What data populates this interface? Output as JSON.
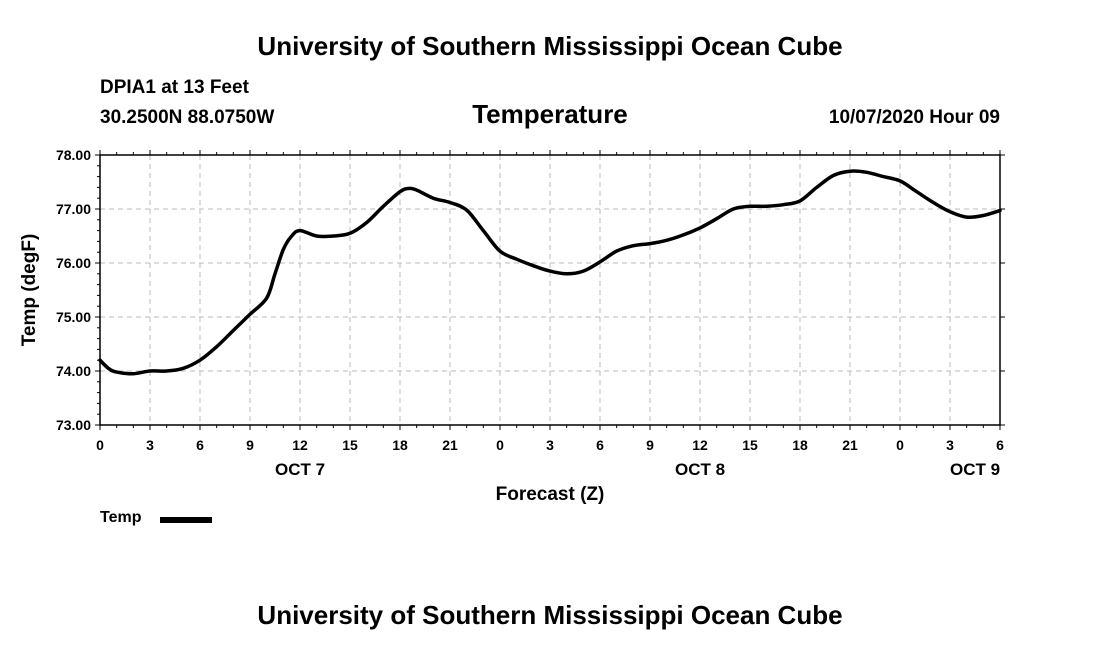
{
  "header": {
    "title": "University of Southern Mississippi Ocean Cube",
    "station": "DPIA1 at 13 Feet",
    "coordinates": "30.2500N 88.0750W",
    "variable": "Temperature",
    "datetime": "10/07/2020 Hour 09"
  },
  "footer": {
    "title": "University of Southern Mississippi Ocean Cube"
  },
  "legend": {
    "label": "Temp",
    "color": "#000000"
  },
  "chart_data": {
    "type": "line",
    "title": "Temperature",
    "xlabel": "Forecast (Z)",
    "ylabel": "Temp (degF)",
    "xlim": [
      0,
      54
    ],
    "ylim": [
      73.0,
      78.0
    ],
    "grid": true,
    "y_ticks": [
      "73.00",
      "74.00",
      "75.00",
      "76.00",
      "77.00",
      "78.00"
    ],
    "y_tick_values": [
      73,
      74,
      75,
      76,
      77,
      78
    ],
    "x_tick_labels": [
      "0",
      "3",
      "6",
      "9",
      "12",
      "15",
      "18",
      "21",
      "0",
      "3",
      "6",
      "9",
      "12",
      "15",
      "18",
      "21",
      "0",
      "3",
      "6"
    ],
    "x_tick_hours": [
      0,
      3,
      6,
      9,
      12,
      15,
      18,
      21,
      24,
      27,
      30,
      33,
      36,
      39,
      42,
      45,
      48,
      51,
      54
    ],
    "day_labels": [
      {
        "label": "OCT 7",
        "hour": 12
      },
      {
        "label": "OCT 8",
        "hour": 36
      },
      {
        "label": "OCT 9",
        "hour": 52.5
      }
    ],
    "series": [
      {
        "name": "Temp",
        "x": [
          0,
          0.5,
          1,
          2,
          3,
          4,
          5,
          6,
          7,
          8,
          9,
          10,
          10.5,
          11,
          11.5,
          12,
          13,
          14,
          15,
          16,
          17,
          18,
          18.5,
          19,
          20,
          21,
          22,
          23,
          24,
          25,
          26,
          27,
          28,
          29,
          30,
          31,
          32,
          33,
          34,
          35,
          36,
          37,
          38,
          39,
          40,
          41,
          42,
          43,
          44,
          45,
          46,
          47,
          48,
          49,
          50,
          51,
          52,
          53,
          54
        ],
        "y": [
          74.2,
          74.05,
          73.98,
          73.95,
          74.0,
          74.0,
          74.05,
          74.2,
          74.45,
          74.75,
          75.05,
          75.35,
          75.8,
          76.25,
          76.5,
          76.6,
          76.5,
          76.5,
          76.55,
          76.75,
          77.05,
          77.32,
          77.38,
          77.35,
          77.2,
          77.12,
          76.98,
          76.6,
          76.22,
          76.07,
          75.95,
          75.85,
          75.8,
          75.85,
          76.02,
          76.22,
          76.32,
          76.36,
          76.42,
          76.52,
          76.65,
          76.82,
          77.0,
          77.05,
          77.05,
          77.08,
          77.15,
          77.4,
          77.62,
          77.7,
          77.68,
          77.6,
          77.52,
          77.32,
          77.12,
          76.95,
          76.85,
          76.88,
          76.97
        ]
      }
    ]
  }
}
